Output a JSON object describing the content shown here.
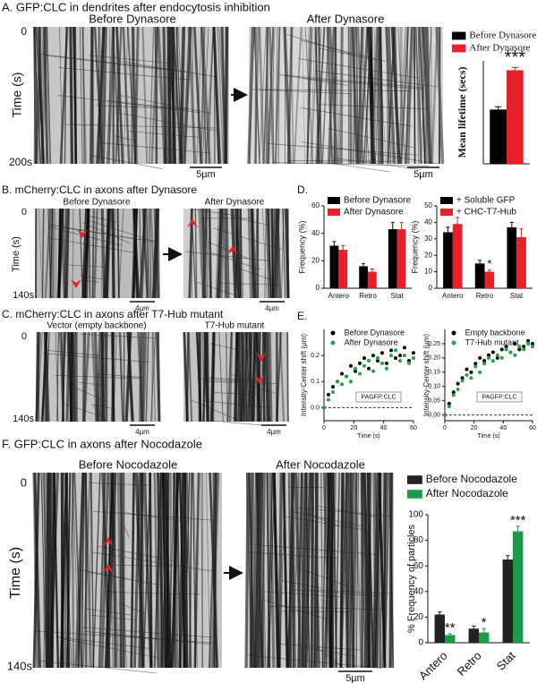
{
  "panels": {
    "A": {
      "title": "A. GFP:CLC in dendrites after endocytosis inhibition",
      "left_label": "Before Dynasore",
      "right_label": "After Dynasore",
      "axis_label": "Time (s)",
      "time_start": "0",
      "time_end": "200s",
      "scale_bar": "5µm"
    },
    "B": {
      "title": "B. mCherry:CLC in axons after Dynasore",
      "left_label": "Before Dynasore",
      "right_label": "After Dynasore",
      "axis_label": "Time (s)",
      "time_start": "0",
      "time_end": "140s",
      "scale_bar": "4µm"
    },
    "C": {
      "title": "C. mCherry:CLC in axons after T7-Hub mutant",
      "left_label": "Vector (empty backbone)",
      "right_label": "T7-Hub mutant",
      "time_start": "0",
      "time_end": "140s",
      "scale_bar": "4µm"
    },
    "D": {
      "title": "D."
    },
    "E": {
      "title": "E."
    },
    "F": {
      "title": "F. GFP:CLC in axons after Nocodazole",
      "left_label": "Before Nocodazole",
      "right_label": "After Nocodazole",
      "axis_label": "Time (s)",
      "time_start": "0",
      "time_end": "140s",
      "scale_bar": "5µm"
    }
  },
  "chart_data": [
    {
      "type": "bar",
      "ylabel": "Mean lifetime (secs)",
      "ylim": [
        0,
        110
      ],
      "series": [
        {
          "name": "Before Dynasore",
          "color": "#000000",
          "values": [
            58
          ],
          "errors": [
            3
          ]
        },
        {
          "name": "After Dynasore",
          "color": "#e8202a",
          "values": [
            100
          ],
          "errors": [
            3
          ],
          "annotations": [
            "***"
          ]
        }
      ]
    },
    {
      "type": "bar",
      "ylabel": "Frequency (%)",
      "categories": [
        "Antero",
        "Retro",
        "Stat"
      ],
      "ylim": [
        0,
        60
      ],
      "yticks": [
        0,
        20,
        40,
        60
      ],
      "series": [
        {
          "name": "Before Dynasore",
          "color": "#000000",
          "values": [
            31,
            16,
            43
          ],
          "errors": [
            3,
            2,
            5
          ]
        },
        {
          "name": "After Dynasore",
          "color": "#e8202a",
          "values": [
            28,
            12,
            43
          ],
          "errors": [
            3,
            2,
            5
          ]
        }
      ]
    },
    {
      "type": "bar",
      "ylabel": "Frequency (%)",
      "categories": [
        "Antero",
        "Retro",
        "Stat"
      ],
      "ylim": [
        0,
        50
      ],
      "yticks": [
        0,
        10,
        20,
        30,
        40,
        50
      ],
      "series": [
        {
          "name": "+ Soluble GFP",
          "color": "#000000",
          "values": [
            34,
            15,
            37
          ],
          "errors": [
            3,
            2,
            3
          ]
        },
        {
          "name": "+ CHC-T7-Hub",
          "color": "#e8202a",
          "values": [
            39,
            10,
            31
          ],
          "errors": [
            4,
            1,
            5
          ],
          "annotations": [
            null,
            "*",
            null
          ]
        }
      ]
    },
    {
      "type": "scatter",
      "xlabel": "Time (s)",
      "ylabel": "Intensity-Center shift (µm)",
      "box_label": "PAGFP:CLC",
      "xlim": [
        0,
        60
      ],
      "xticks": [
        0,
        20,
        40,
        60
      ],
      "ylim": [
        -0.05,
        0.3
      ],
      "yticks": [
        {
          "value": 0,
          "label": "0.0"
        },
        {
          "value": 0.1,
          "label": "0.1"
        },
        {
          "value": 0.2,
          "label": "0.2"
        }
      ],
      "x": [
        0,
        3,
        6,
        9,
        12,
        15,
        18,
        21,
        24,
        27,
        30,
        33,
        36,
        39,
        42,
        45,
        48,
        51,
        54,
        57,
        60
      ],
      "series": [
        {
          "name": "Before Dynasore",
          "color": "#000000",
          "values": [
            0,
            0.05,
            0.08,
            0.1,
            0.13,
            0.12,
            0.16,
            0.14,
            0.17,
            0.19,
            0.15,
            0.2,
            0.18,
            0.21,
            0.17,
            0.22,
            0.19,
            0.2,
            0.23,
            0.18,
            0.21
          ]
        },
        {
          "name": "After Dynasore",
          "color": "#2e9e48",
          "values": [
            0,
            0.03,
            0.06,
            0.1,
            0.09,
            0.12,
            0.1,
            0.15,
            0.13,
            0.16,
            0.18,
            0.14,
            0.19,
            0.17,
            0.15,
            0.2,
            0.22,
            0.18,
            0.2,
            0.17,
            0.19
          ]
        }
      ]
    },
    {
      "type": "scatter",
      "xlabel": "Time (s)",
      "ylabel": "Intensity-Center shift (µm)",
      "box_label": "PAGFP:CLC",
      "xlim": [
        0,
        60
      ],
      "xticks": [
        0,
        20,
        40,
        60
      ],
      "ylim": [
        -0.02,
        0.3
      ],
      "yticks": [
        {
          "value": 0,
          "label": "0.00"
        },
        {
          "value": 0.05,
          "label": "0.05"
        },
        {
          "value": 0.1,
          "label": "0.10"
        },
        {
          "value": 0.15,
          "label": "0.15"
        },
        {
          "value": 0.2,
          "label": "0.20"
        },
        {
          "value": 0.25,
          "label": "0.25"
        }
      ],
      "x": [
        0,
        3,
        6,
        9,
        12,
        15,
        18,
        21,
        24,
        27,
        30,
        33,
        36,
        39,
        42,
        45,
        48,
        51,
        54,
        57,
        60
      ],
      "series": [
        {
          "name": "Empty backbone",
          "color": "#000000",
          "values": [
            0,
            0.04,
            0.08,
            0.11,
            0.13,
            0.16,
            0.15,
            0.18,
            0.2,
            0.19,
            0.21,
            0.22,
            0.2,
            0.23,
            0.24,
            0.22,
            0.25,
            0.23,
            0.24,
            0.26,
            0.25
          ]
        },
        {
          "name": "T7-Hub mutant",
          "color": "#2e9e48",
          "values": [
            0,
            0.03,
            0.07,
            0.09,
            0.12,
            0.14,
            0.13,
            0.17,
            0.15,
            0.18,
            0.2,
            0.19,
            0.21,
            0.2,
            0.23,
            0.22,
            0.21,
            0.24,
            0.23,
            0.25,
            0.24
          ]
        }
      ]
    },
    {
      "type": "bar",
      "ylabel": "% Frequency of particles",
      "categories": [
        "Antero",
        "Retro",
        "Stat"
      ],
      "ylim": [
        0,
        100
      ],
      "yticks": [
        0,
        20,
        40,
        60,
        80,
        100
      ],
      "series": [
        {
          "name": "Before Nocodazole",
          "color": "#222222",
          "values": [
            22,
            11,
            65
          ],
          "errors": [
            2,
            2,
            3
          ]
        },
        {
          "name": "After Nocodazole",
          "color": "#1a9a4a",
          "values": [
            6,
            8,
            87
          ],
          "errors": [
            1,
            3,
            4
          ],
          "annotations": [
            "**",
            "*",
            "***"
          ]
        }
      ]
    }
  ]
}
